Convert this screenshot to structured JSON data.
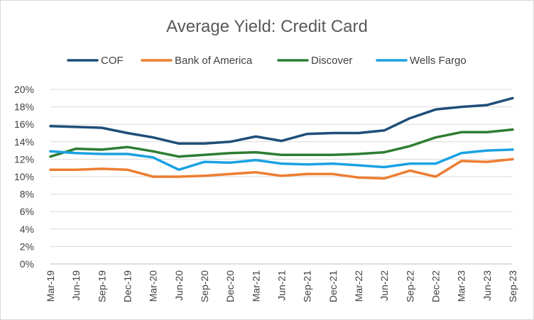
{
  "chart_data": {
    "type": "line",
    "title": "Average Yield: Credit Card",
    "xlabel": "",
    "ylabel": "",
    "categories": [
      "Mar-19",
      "Jun-19",
      "Sep-19",
      "Dec-19",
      "Mar-20",
      "Jun-20",
      "Sep-20",
      "Dec-20",
      "Mar-21",
      "Jun-21",
      "Sep-21",
      "Dec-21",
      "Mar-22",
      "Jun-22",
      "Sep-22",
      "Dec-22",
      "Mar-23",
      "Jun-23",
      "Sep-23"
    ],
    "ylim": [
      0,
      20
    ],
    "yticks": [
      "0%",
      "2%",
      "4%",
      "6%",
      "8%",
      "10%",
      "12%",
      "14%",
      "16%",
      "18%",
      "20%"
    ],
    "grid": true,
    "legend_position": "top",
    "series": [
      {
        "name": "COF",
        "color": "#1f4e79",
        "values": [
          15.8,
          15.7,
          15.6,
          15.0,
          14.5,
          13.8,
          13.8,
          14.0,
          14.6,
          14.1,
          14.9,
          15.0,
          15.0,
          15.3,
          16.7,
          17.7,
          18.0,
          18.2,
          19.0
        ]
      },
      {
        "name": "Bank of America",
        "color": "#ed7d31",
        "values": [
          10.8,
          10.8,
          10.9,
          10.8,
          10.0,
          10.0,
          10.1,
          10.3,
          10.5,
          10.1,
          10.3,
          10.3,
          9.9,
          9.8,
          10.7,
          10.0,
          11.8,
          11.7,
          12.0
        ]
      },
      {
        "name": "Discover",
        "color": "#2e7d32",
        "values": [
          12.3,
          13.2,
          13.1,
          13.4,
          12.9,
          12.3,
          12.5,
          12.7,
          12.8,
          12.5,
          12.5,
          12.5,
          12.6,
          12.8,
          13.5,
          14.5,
          15.1,
          15.1,
          15.4
        ]
      },
      {
        "name": "Wells Fargo",
        "color": "#1ba1e2",
        "values": [
          12.9,
          12.7,
          12.6,
          12.6,
          12.2,
          10.8,
          11.7,
          11.6,
          11.9,
          11.5,
          11.4,
          11.5,
          11.3,
          11.1,
          11.5,
          11.5,
          12.7,
          13.0,
          13.1
        ]
      }
    ]
  }
}
